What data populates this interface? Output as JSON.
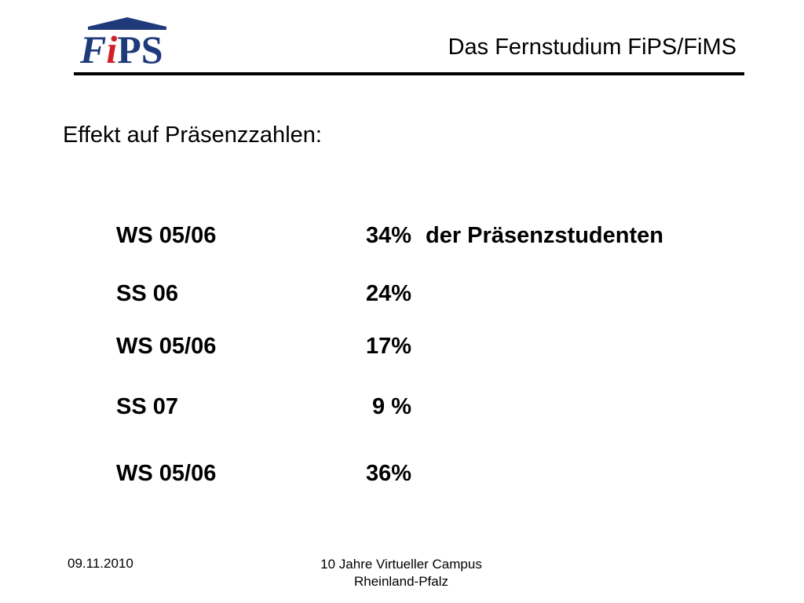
{
  "header": {
    "logo": {
      "f": "F",
      "i": "i",
      "ps": "PS",
      "colors": {
        "blue": "#1f3a7a",
        "red": "#d2202a"
      }
    },
    "title": "Das Fernstudium FiPS/FiMS"
  },
  "main": {
    "heading": "Effekt auf Präsenzzahlen:",
    "rows": [
      {
        "term": "WS 05/06",
        "percent": "34%",
        "note": "der Präsenzstudenten"
      },
      {
        "term": "SS 06",
        "percent": "24%"
      },
      {
        "term": "WS 05/06",
        "percent": "17%"
      },
      {
        "term": "SS 07",
        "percent": "9 %"
      },
      {
        "term": "WS 05/06",
        "percent": "36%"
      }
    ]
  },
  "footer": {
    "date": "09.11.2010",
    "event_line1": "10 Jahre Virtueller Campus",
    "event_line2": "Rheinland-Pfalz"
  }
}
